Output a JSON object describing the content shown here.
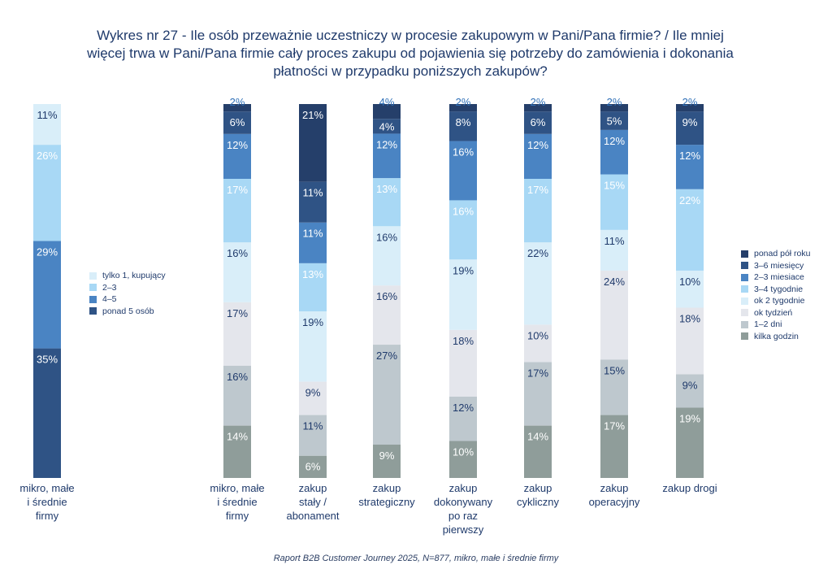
{
  "title": "Wykres nr 27 -  Ile osób przeważnie uczestniczy w procesie zakupowym w Pani/Pana firmie? / Ile mniej więcej trwa w Pani/Pana firmie cały proces zakupu od pojawienia się potrzeby do zamówienia i dokonania płatności w przypadku poniższych zakupów?",
  "footer": "Raport B2B Customer Journey 2025, N=877, mikro, małe i średnie firmy",
  "chart_data": [
    {
      "type": "bar",
      "stacked": true,
      "categories": [
        "mikro, małe i średnie firmy"
      ],
      "series": [
        {
          "name": "ponad 5 osób",
          "color": "#2f5385",
          "values": [
            35
          ]
        },
        {
          "name": "4-5",
          "color": "#4a84c3",
          "values": [
            29
          ]
        },
        {
          "name": "2-3",
          "color": "#a8d8f5",
          "values": [
            26
          ]
        },
        {
          "name": "tylko 1, kupujący",
          "color": "#d9eef9",
          "values": [
            11
          ]
        }
      ],
      "ylim": [
        0,
        100
      ]
    },
    {
      "type": "bar",
      "stacked": true,
      "categories": [
        "mikro, małe i średnie firmy",
        "zakup stały / abonament",
        "zakup strategiczny",
        "zakup dokonywany po raz pierwszy",
        "zakup cykliczny",
        "zakup operacyjny",
        "zakup drogi"
      ],
      "series": [
        {
          "name": "kilka godzin",
          "color": "#8f9d9a",
          "values": [
            14,
            6,
            9,
            10,
            14,
            17,
            19
          ]
        },
        {
          "name": "1–2 dni",
          "color": "#bec8ce",
          "values": [
            16,
            11,
            27,
            12,
            17,
            15,
            9
          ]
        },
        {
          "name": "ok tydzień",
          "color": "#e4e6ec",
          "values": [
            17,
            9,
            16,
            18,
            10,
            24,
            18
          ]
        },
        {
          "name": "ok 2 tygodnie",
          "color": "#d9eef9",
          "values": [
            16,
            19,
            16,
            19,
            22,
            11,
            10
          ]
        },
        {
          "name": "3–4 tygodnie",
          "color": "#a8d8f5",
          "values": [
            17,
            13,
            13,
            16,
            17,
            15,
            22
          ]
        },
        {
          "name": "2–3 miesiace",
          "color": "#4a84c3",
          "values": [
            12,
            11,
            12,
            16,
            12,
            12,
            12
          ]
        },
        {
          "name": "3–6 miesięcy",
          "color": "#2f5385",
          "values": [
            6,
            11,
            4,
            8,
            6,
            5,
            9
          ]
        },
        {
          "name": "ponad pół roku",
          "color": "#253f6a",
          "values": [
            2,
            21,
            4,
            2,
            2,
            2,
            2
          ]
        }
      ],
      "ylim": [
        0,
        100
      ]
    }
  ],
  "legend_left": [
    {
      "label": "tylko 1, kupujący",
      "color": "#d9eef9"
    },
    {
      "label": "2–3",
      "color": "#a8d8f5"
    },
    {
      "label": "4–5",
      "color": "#4a84c3"
    },
    {
      "label": "ponad 5 osób",
      "color": "#2f5385"
    }
  ],
  "legend_right": [
    {
      "label": "ponad pół roku",
      "color": "#253f6a"
    },
    {
      "label": "3–6 miesięcy",
      "color": "#2f5385"
    },
    {
      "label": "2–3 miesiace",
      "color": "#4a84c3"
    },
    {
      "label": "3–4 tygodnie",
      "color": "#a8d8f5"
    },
    {
      "label": "ok 2 tygodnie",
      "color": "#d9eef9"
    },
    {
      "label": "ok tydzień",
      "color": "#e4e6ec"
    },
    {
      "label": "1–2 dni",
      "color": "#bec8ce"
    },
    {
      "label": "kilka godzin",
      "color": "#8f9d9a"
    }
  ],
  "category_label_lines": [
    [
      "mikro, małe",
      "i średnie",
      "firmy"
    ],
    [
      "mikro, małe",
      "i średnie",
      "firmy"
    ],
    [
      "zakup",
      "stały /",
      "abonament"
    ],
    [
      "zakup",
      "strategiczny"
    ],
    [
      "zakup",
      "dokonywany",
      "po raz",
      "pierwszy"
    ],
    [
      "zakup",
      "cykliczny"
    ],
    [
      "zakup",
      "operacyjny"
    ],
    [
      "zakup drogi"
    ]
  ],
  "label_colors": {
    "#253f6a": "#ffffff",
    "#2f5385": "#ffffff",
    "#4a84c3": "#ffffff",
    "#a8d8f5": "#ffffff",
    "#d9eef9": "#1f3a6b",
    "#e4e6ec": "#1f3a6b",
    "#bec8ce": "#1f3a6b",
    "#8f9d9a": "#ffffff"
  }
}
